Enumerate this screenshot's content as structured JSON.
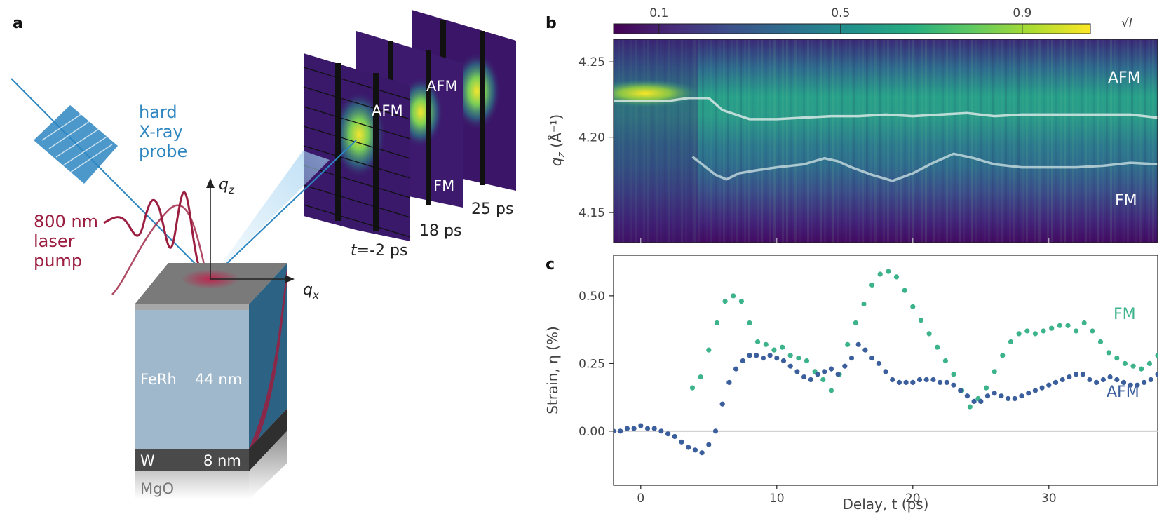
{
  "panel_a": {
    "label": "a",
    "xray_label": [
      "hard",
      "X-ray",
      "probe"
    ],
    "laser_label": [
      "800 nm",
      "laser",
      "pump"
    ],
    "axis_qz": "q",
    "axis_qz_sub": "z",
    "axis_qx": "q",
    "axis_qx_sub": "x",
    "layer_ferh": "FeRh",
    "layer_ferh_thickness": "44 nm",
    "layer_w": "W",
    "layer_w_thickness": "8 nm",
    "layer_mgo": "MgO",
    "detector_labels": {
      "afm1": "AFM",
      "afm2": "AFM",
      "fm": "FM"
    },
    "time_labels": {
      "t_prefix": "t",
      "t1": "=-2 ps",
      "t2": "18 ps",
      "t3": "25 ps"
    }
  },
  "panel_b": {
    "label": "b",
    "colorbar_ticks": [
      "0.1",
      "0.5",
      "0.9"
    ],
    "colorbar_label": "√I",
    "y_ticks": [
      "4.25",
      "4.20",
      "4.15"
    ],
    "ylabel_q": "q",
    "ylabel_sub": "z",
    "ylabel_unit": " (Å⁻¹)",
    "annot_afm": "AFM",
    "annot_fm": "FM"
  },
  "panel_c": {
    "label": "c",
    "y_ticks": [
      "0.50",
      "0.25",
      "0.00"
    ],
    "x_ticks": [
      "0",
      "10",
      "20",
      "30"
    ],
    "ylabel": "Strain, η (%)",
    "xlabel": "Delay, t (ps)",
    "annot_fm": "FM",
    "annot_afm": "AFM"
  },
  "colors": {
    "xray": "#2e86c1",
    "laser": "#9b1d3f",
    "fm": "#3cb38a",
    "afm": "#3b5f9c"
  },
  "chart_data": [
    {
      "type": "heatmap",
      "title": "",
      "xlabel": "",
      "ylabel": "q_z (Å⁻¹)",
      "xlim": [
        -2,
        38
      ],
      "ylim": [
        4.13,
        4.265
      ],
      "colorbar": {
        "label": "√I",
        "ticks": [
          0.1,
          0.5,
          0.9
        ],
        "range": [
          0,
          1.05
        ]
      },
      "ridges": [
        {
          "name": "AFM",
          "x": [
            -2,
            0,
            2,
            3.5,
            5,
            6,
            8,
            10,
            12,
            14,
            16,
            18,
            20,
            22,
            24,
            26,
            28,
            30,
            32,
            34,
            36,
            38
          ],
          "y": [
            4.224,
            4.224,
            4.224,
            4.226,
            4.226,
            4.218,
            4.212,
            4.212,
            4.213,
            4.214,
            4.214,
            4.215,
            4.214,
            4.215,
            4.216,
            4.214,
            4.215,
            4.215,
            4.215,
            4.215,
            4.215,
            4.213
          ]
        },
        {
          "name": "FM",
          "x": [
            3.8,
            4.8,
            5.5,
            6.3,
            7.2,
            8.5,
            10,
            12,
            13.5,
            14.5,
            15.5,
            17,
            18.5,
            20,
            21.5,
            23,
            24.5,
            26,
            28,
            30,
            32,
            34,
            36,
            38
          ],
          "y": [
            4.187,
            4.18,
            4.175,
            4.172,
            4.176,
            4.178,
            4.18,
            4.182,
            4.186,
            4.184,
            4.18,
            4.175,
            4.171,
            4.176,
            4.183,
            4.189,
            4.186,
            4.182,
            4.18,
            4.18,
            4.18,
            4.181,
            4.183,
            4.182
          ]
        }
      ]
    },
    {
      "type": "scatter",
      "title": "",
      "xlabel": "Delay, t (ps)",
      "ylabel": "Strain, η (%)",
      "xlim": [
        -2,
        38
      ],
      "ylim": [
        -0.2,
        0.65
      ],
      "grid": false,
      "hline": 0.0,
      "series": [
        {
          "name": "FM",
          "x": [
            3.8,
            4.4,
            5.0,
            5.6,
            6.2,
            6.8,
            7.4,
            8.0,
            8.6,
            9.2,
            9.8,
            10.4,
            11.0,
            11.6,
            12.2,
            12.8,
            13.4,
            14.0,
            14.6,
            15.2,
            15.8,
            16.4,
            17.0,
            17.6,
            18.2,
            18.8,
            19.4,
            20.0,
            20.6,
            21.2,
            21.8,
            22.4,
            23.0,
            23.6,
            24.2,
            24.8,
            25.4,
            26.0,
            26.6,
            27.2,
            27.8,
            28.4,
            29.0,
            29.6,
            30.2,
            30.8,
            31.4,
            32.0,
            32.6,
            33.2,
            33.8,
            34.4,
            35.0,
            35.6,
            36.2,
            36.8,
            37.4,
            38.0
          ],
          "y": [
            0.16,
            0.2,
            0.3,
            0.4,
            0.48,
            0.5,
            0.48,
            0.4,
            0.33,
            0.32,
            0.3,
            0.31,
            0.28,
            0.27,
            0.26,
            0.22,
            0.19,
            0.15,
            0.21,
            0.32,
            0.4,
            0.47,
            0.54,
            0.58,
            0.59,
            0.57,
            0.52,
            0.46,
            0.41,
            0.36,
            0.31,
            0.26,
            0.21,
            0.15,
            0.09,
            0.12,
            0.16,
            0.22,
            0.28,
            0.33,
            0.36,
            0.37,
            0.36,
            0.37,
            0.38,
            0.39,
            0.39,
            0.37,
            0.4,
            0.37,
            0.33,
            0.29,
            0.27,
            0.25,
            0.24,
            0.23,
            0.25,
            0.28
          ]
        },
        {
          "name": "AFM",
          "x": [
            -2.0,
            -1.5,
            -1.0,
            -0.5,
            0.0,
            0.5,
            1.0,
            1.5,
            2.0,
            2.5,
            3.0,
            3.5,
            4.0,
            4.5,
            5.0,
            5.5,
            6.0,
            6.5,
            7.0,
            7.5,
            8.0,
            8.5,
            9.0,
            9.5,
            10.0,
            10.5,
            11.0,
            11.5,
            12.0,
            12.5,
            13.0,
            13.5,
            14.0,
            14.5,
            15.0,
            15.5,
            16.0,
            16.5,
            17.0,
            17.5,
            18.0,
            18.5,
            19.0,
            19.5,
            20.0,
            20.5,
            21.0,
            21.5,
            22.0,
            22.5,
            23.0,
            23.5,
            24.0,
            24.5,
            25.0,
            25.5,
            26.0,
            26.5,
            27.0,
            27.5,
            28.0,
            28.5,
            29.0,
            29.5,
            30.0,
            30.5,
            31.0,
            31.5,
            32.0,
            32.5,
            33.0,
            33.5,
            34.0,
            34.5,
            35.0,
            35.5,
            36.0,
            36.5,
            37.0,
            37.5,
            38.0
          ],
          "y": [
            0.0,
            0.0,
            0.01,
            0.01,
            0.02,
            0.01,
            0.01,
            0.0,
            -0.01,
            -0.02,
            -0.04,
            -0.06,
            -0.07,
            -0.08,
            -0.05,
            0.0,
            0.1,
            0.18,
            0.23,
            0.26,
            0.28,
            0.28,
            0.27,
            0.28,
            0.27,
            0.26,
            0.24,
            0.22,
            0.2,
            0.19,
            0.21,
            0.22,
            0.23,
            0.21,
            0.24,
            0.27,
            0.32,
            0.3,
            0.27,
            0.25,
            0.22,
            0.19,
            0.18,
            0.18,
            0.18,
            0.19,
            0.19,
            0.19,
            0.18,
            0.18,
            0.17,
            0.15,
            0.13,
            0.11,
            0.11,
            0.13,
            0.14,
            0.13,
            0.12,
            0.12,
            0.13,
            0.14,
            0.15,
            0.16,
            0.17,
            0.18,
            0.19,
            0.2,
            0.21,
            0.21,
            0.19,
            0.18,
            0.19,
            0.2,
            0.19,
            0.18,
            0.17,
            0.17,
            0.18,
            0.19,
            0.21
          ]
        }
      ]
    }
  ]
}
